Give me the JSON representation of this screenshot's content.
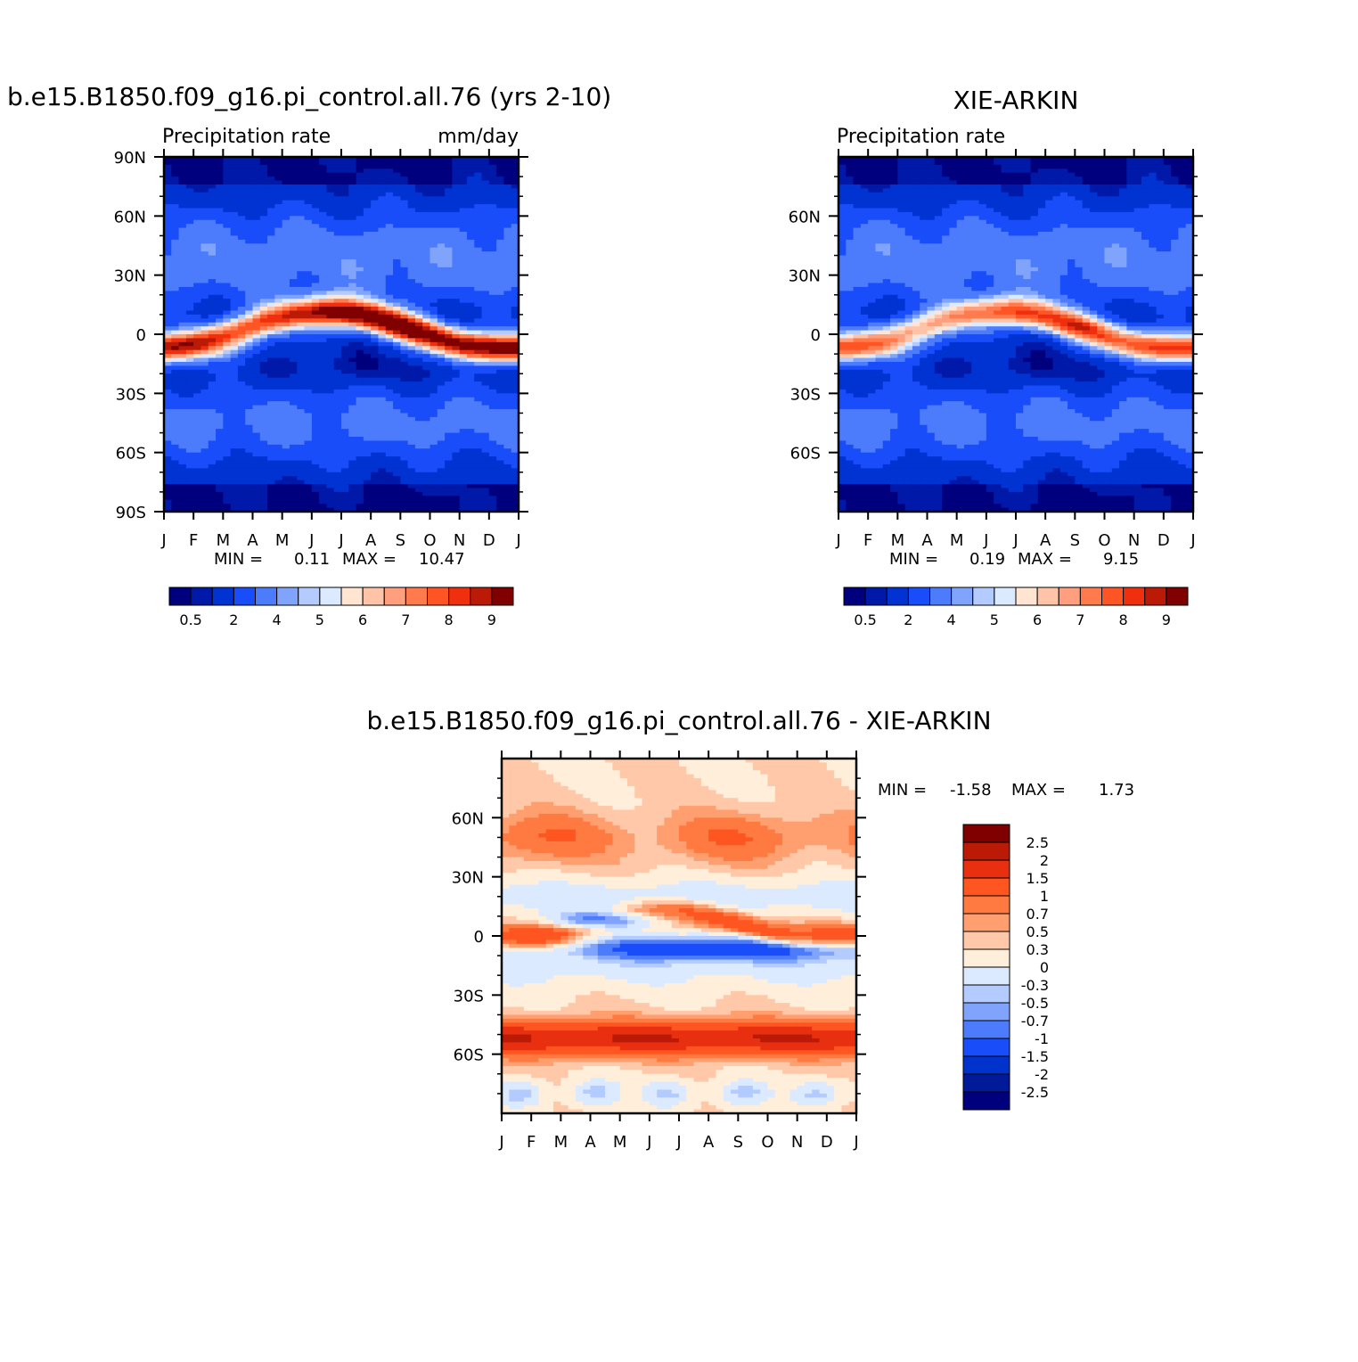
{
  "colors": {
    "abs_scale": [
      "#00007f",
      "#0019a8",
      "#0033d2",
      "#1a4dfa",
      "#4c7cfb",
      "#80a4fc",
      "#b3cbfe",
      "#dceaff",
      "#ffe5d2",
      "#ffc3a8",
      "#ff9f7d",
      "#ff7a4d",
      "#ff5525",
      "#f02f0f",
      "#bb1a07",
      "#800000"
    ],
    "diff_scale": [
      "#00007f",
      "#001a99",
      "#0033cc",
      "#1a4dfa",
      "#4c7cfb",
      "#80a4fc",
      "#b3cbfe",
      "#dceaff",
      "#ffeeda",
      "#ffc8a8",
      "#ff9f6f",
      "#ff7a40",
      "#ff5520",
      "#e83010",
      "#bb1a07",
      "#800000"
    ]
  },
  "chart_data": [
    {
      "type": "heatmap",
      "title": "b.e15.B1850.f09_g16.pi_control.all.76 (yrs 2-10)",
      "subtitle_left": "Precipitation  rate",
      "subtitle_right": "mm/day",
      "x_ticks": [
        "J",
        "F",
        "M",
        "A",
        "M",
        "J",
        "J",
        "A",
        "S",
        "O",
        "N",
        "D",
        "J"
      ],
      "y_ticks": [
        "90N",
        "60N",
        "30N",
        "0",
        "30S",
        "60S",
        "90S"
      ],
      "ylim": [
        -90,
        90
      ],
      "min_label": "MIN =",
      "min_value": "0.11",
      "max_label": "MAX =",
      "max_value": "10.47",
      "colorbar_levels": [
        "0.5",
        "2",
        "4",
        "5",
        "6",
        "7",
        "8",
        "9"
      ],
      "colorbar_orientation": "horizontal",
      "data_range": [
        0.11,
        10.47
      ]
    },
    {
      "type": "heatmap",
      "title": "XIE-ARKIN",
      "subtitle_left": "Precipitation  rate",
      "x_ticks": [
        "J",
        "F",
        "M",
        "A",
        "M",
        "J",
        "J",
        "A",
        "S",
        "O",
        "N",
        "D",
        "J"
      ],
      "y_ticks": [
        "60N",
        "30N",
        "0",
        "30S",
        "60S"
      ],
      "ylim": [
        -90,
        90
      ],
      "min_label": "MIN =",
      "min_value": "0.19",
      "max_label": "MAX =",
      "max_value": "9.15",
      "colorbar_levels": [
        "0.5",
        "2",
        "4",
        "5",
        "6",
        "7",
        "8",
        "9"
      ],
      "colorbar_orientation": "horizontal",
      "data_range": [
        0.19,
        9.15
      ]
    },
    {
      "type": "heatmap",
      "title": "b.e15.B1850.f09_g16.pi_control.all.76 - XIE-ARKIN",
      "x_ticks": [
        "J",
        "F",
        "M",
        "A",
        "M",
        "J",
        "J",
        "A",
        "S",
        "O",
        "N",
        "D",
        "J"
      ],
      "y_ticks": [
        "60N",
        "30N",
        "0",
        "30S",
        "60S"
      ],
      "ylim": [
        -90,
        90
      ],
      "min_label": "MIN =",
      "min_value": "-1.58",
      "max_label": "MAX =",
      "max_value": "1.73",
      "colorbar_levels": [
        "2.5",
        "2",
        "1.5",
        "1",
        "0.7",
        "0.5",
        "0.3",
        "0",
        "-0.3",
        "-0.5",
        "-0.7",
        "-1",
        "-1.5",
        "-2",
        "-2.5"
      ],
      "colorbar_orientation": "vertical",
      "data_range": [
        -1.58,
        1.73
      ]
    }
  ]
}
